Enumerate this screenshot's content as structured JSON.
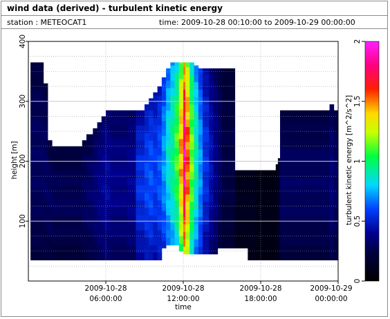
{
  "header": {
    "title": "wind data (derived) - turbulent kinetic energy",
    "station": "station : METEOCAT1",
    "time_range": "time: 2009-10-28 00:10:00 to 2009-10-29 00:00:00"
  },
  "chart_data": {
    "type": "heatmap",
    "title": "wind data (derived) - turbulent kinetic energy",
    "xlabel": "time",
    "ylabel": "height [m]",
    "xlim": [
      "2009-10-28 00:00:00",
      "2009-10-29 00:00:00"
    ],
    "ylim": [
      0,
      400
    ],
    "grid": true,
    "x_ticks": [
      {
        "value": "2009-10-28 06:00:00",
        "line1": "2009-10-28",
        "line2": "06:00:00"
      },
      {
        "value": "2009-10-28 12:00:00",
        "line1": "2009-10-28",
        "line2": "12:00:00"
      },
      {
        "value": "2009-10-28 18:00:00",
        "line1": "2009-10-28",
        "line2": "18:00:00"
      },
      {
        "value": "2009-10-29 00:00:00",
        "line1": "2009-10-29",
        "line2": "00:00:00"
      }
    ],
    "y_ticks": [
      100,
      200,
      300,
      400
    ],
    "colorbar": {
      "label": "turbulent kinetic energy [m^2/s^2]",
      "range": [
        0,
        2
      ],
      "ticks": [
        "0",
        "0.5",
        "1",
        "1.5",
        "2"
      ],
      "colormap": "black-blue-cyan-green-yellow-red-magenta"
    },
    "columns": [
      {
        "start": "00:10",
        "end": "01:10",
        "top": 365,
        "bottom": 35,
        "tke": 0.3
      },
      {
        "start": "01:10",
        "end": "01:30",
        "top": 330,
        "bottom": 35,
        "tke": 0.3
      },
      {
        "start": "01:30",
        "end": "01:50",
        "top": 235,
        "bottom": 35,
        "tke": 0.3
      },
      {
        "start": "01:50",
        "end": "04:10",
        "top": 225,
        "bottom": 35,
        "tke": 0.28
      },
      {
        "start": "04:10",
        "end": "04:30",
        "top": 235,
        "bottom": 35,
        "tke": 0.3
      },
      {
        "start": "04:30",
        "end": "05:00",
        "top": 245,
        "bottom": 35,
        "tke": 0.32
      },
      {
        "start": "05:00",
        "end": "05:20",
        "top": 255,
        "bottom": 35,
        "tke": 0.35
      },
      {
        "start": "05:20",
        "end": "05:40",
        "top": 265,
        "bottom": 35,
        "tke": 0.38
      },
      {
        "start": "05:40",
        "end": "06:00",
        "top": 275,
        "bottom": 35,
        "tke": 0.4
      },
      {
        "start": "06:00",
        "end": "06:20",
        "top": 285,
        "bottom": 35,
        "tke": 0.42
      },
      {
        "start": "06:20",
        "end": "07:40",
        "top": 285,
        "bottom": 35,
        "tke": 0.38
      },
      {
        "start": "07:40",
        "end": "08:20",
        "top": 285,
        "bottom": 35,
        "tke": 0.4
      },
      {
        "start": "08:20",
        "end": "09:00",
        "top": 285,
        "bottom": 35,
        "tke": 0.55
      },
      {
        "start": "09:00",
        "end": "09:20",
        "top": 295,
        "bottom": 35,
        "tke": 0.6
      },
      {
        "start": "09:20",
        "end": "09:40",
        "top": 305,
        "bottom": 35,
        "tke": 0.62
      },
      {
        "start": "09:40",
        "end": "10:00",
        "top": 315,
        "bottom": 35,
        "tke": 0.58
      },
      {
        "start": "10:00",
        "end": "10:20",
        "top": 325,
        "bottom": 35,
        "tke": 0.62
      },
      {
        "start": "10:20",
        "end": "10:40",
        "top": 340,
        "bottom": 55,
        "tke": 0.72
      },
      {
        "start": "10:40",
        "end": "11:00",
        "top": 355,
        "bottom": 60,
        "tke": 0.85
      },
      {
        "start": "11:00",
        "end": "11:20",
        "top": 365,
        "bottom": 60,
        "tke": 0.95
      },
      {
        "start": "11:20",
        "end": "11:40",
        "top": 365,
        "bottom": 60,
        "tke": 1.1
      },
      {
        "start": "11:40",
        "end": "12:00",
        "top": 365,
        "bottom": 50,
        "tke": 1.45
      },
      {
        "start": "12:00",
        "end": "12:10",
        "top": 365,
        "bottom": 45,
        "tke": 1.85
      },
      {
        "start": "12:10",
        "end": "12:30",
        "top": 365,
        "bottom": 45,
        "tke": 1.55
      },
      {
        "start": "12:30",
        "end": "12:50",
        "top": 365,
        "bottom": 45,
        "tke": 1.15
      },
      {
        "start": "12:50",
        "end": "13:10",
        "top": 360,
        "bottom": 45,
        "tke": 0.9
      },
      {
        "start": "13:10",
        "end": "13:30",
        "top": 355,
        "bottom": 45,
        "tke": 0.72
      },
      {
        "start": "13:30",
        "end": "14:00",
        "top": 355,
        "bottom": 45,
        "tke": 0.55
      },
      {
        "start": "14:00",
        "end": "14:20",
        "top": 355,
        "bottom": 45,
        "tke": 0.45
      },
      {
        "start": "14:20",
        "end": "14:40",
        "top": 355,
        "bottom": 45,
        "tke": 0.38
      },
      {
        "start": "14:40",
        "end": "15:00",
        "top": 355,
        "bottom": 55,
        "tke": 0.32
      },
      {
        "start": "15:00",
        "end": "16:00",
        "top": 355,
        "bottom": 55,
        "tke": 0.25
      },
      {
        "start": "16:00",
        "end": "17:00",
        "top": 185,
        "bottom": 55,
        "tke": 0.12
      },
      {
        "start": "17:00",
        "end": "17:40",
        "top": 185,
        "bottom": 35,
        "tke": 0.12
      },
      {
        "start": "17:40",
        "end": "19:10",
        "top": 185,
        "bottom": 35,
        "tke": 0.08
      },
      {
        "start": "19:10",
        "end": "19:20",
        "top": 195,
        "bottom": 35,
        "tke": 0.1
      },
      {
        "start": "19:20",
        "end": "19:30",
        "top": 205,
        "bottom": 35,
        "tke": 0.15
      },
      {
        "start": "19:30",
        "end": "23:20",
        "top": 285,
        "bottom": 35,
        "tke": 0.3
      },
      {
        "start": "23:20",
        "end": "23:40",
        "top": 295,
        "bottom": 35,
        "tke": 0.35
      },
      {
        "start": "23:40",
        "end": "24:00",
        "top": 285,
        "bottom": 35,
        "tke": 0.3
      }
    ]
  }
}
